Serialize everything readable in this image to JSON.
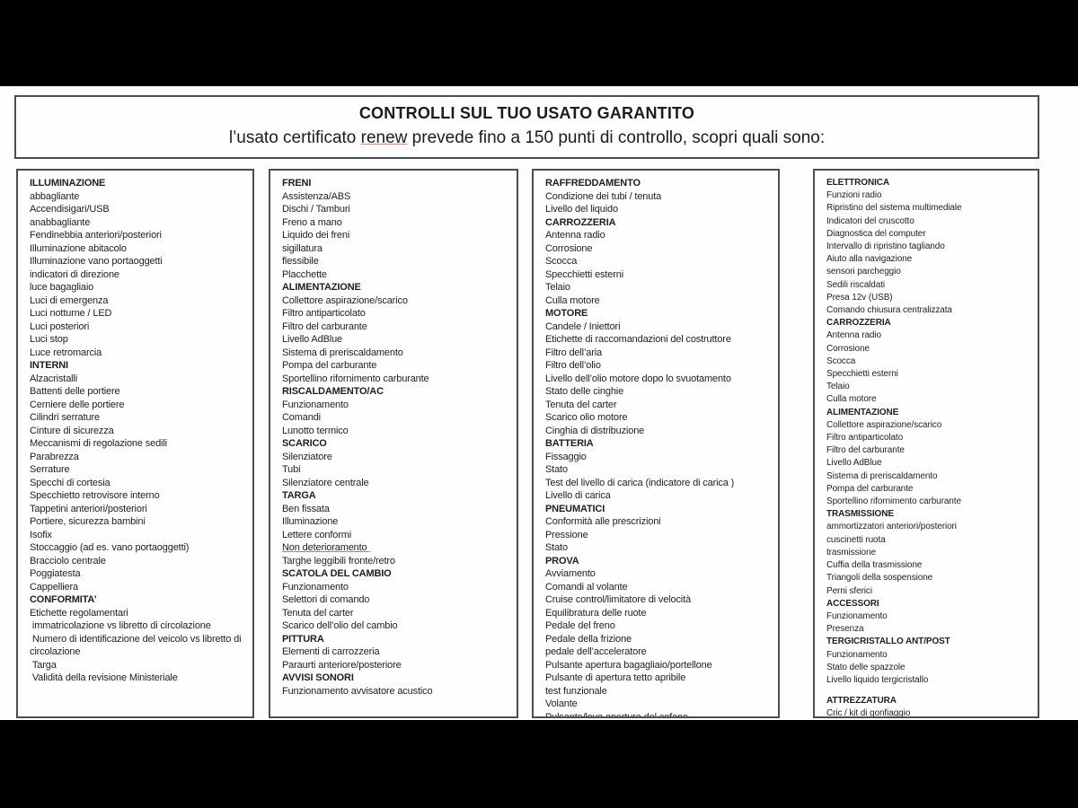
{
  "colors": {
    "frame": "#000000",
    "page_bg": "#fdfdfd",
    "box_border": "#4d4d4d",
    "text": "#1f1f1f",
    "spellcheck_underline": "#b97b74"
  },
  "header": {
    "title": "CONTROLLI SUL TUO USATO GARANTITO",
    "subtitle_pre": "l’usato certificato ",
    "subtitle_renew": "renew",
    "subtitle_post": " prevede fino a 150 punti di controllo, scopri quali sono:"
  },
  "columns": [
    {
      "items": [
        {
          "t": "ILLUMINAZIONE",
          "b": true
        },
        {
          "t": "abbagliante"
        },
        {
          "t": "Accendisigari/USB"
        },
        {
          "t": "anabbagliante"
        },
        {
          "t": "Fendinebbia anteriori/posteriori"
        },
        {
          "t": "Illuminazione abitacolo"
        },
        {
          "t": "Illuminazione vano portaoggetti"
        },
        {
          "t": "indicatori di direzione"
        },
        {
          "t": "luce bagagliaio"
        },
        {
          "t": "Luci di emergenza"
        },
        {
          "t": "Luci notturne / LED"
        },
        {
          "t": "Luci posteriori"
        },
        {
          "t": "Luci stop"
        },
        {
          "t": "Luce retromarcia"
        },
        {
          "t": "INTERNI",
          "b": true
        },
        {
          "t": "Alzacristalli"
        },
        {
          "t": "Battenti delle portiere"
        },
        {
          "t": "Cerniere delle portiere"
        },
        {
          "t": "Cilindri serrature"
        },
        {
          "t": "Cinture di sicurezza"
        },
        {
          "t": "Meccanismi di regolazione sedili"
        },
        {
          "t": "Parabrezza"
        },
        {
          "t": "Serrature"
        },
        {
          "t": "Specchi di cortesia"
        },
        {
          "t": "Specchietto retrovisore interno"
        },
        {
          "t": "Tappetini anteriori/posteriori"
        },
        {
          "t": "Portiere, sicurezza bambini"
        },
        {
          "t": "Isofix"
        },
        {
          "t": "Stoccaggio (ad es. vano portaoggetti)"
        },
        {
          "t": "Bracciolo centrale"
        },
        {
          "t": "Poggiatesta"
        },
        {
          "t": "Cappelliera"
        },
        {
          "t": "CONFORMITA’",
          "b": true
        },
        {
          "t": "Etichette regolamentari"
        },
        {
          "t": " immatricolazione vs libretto di circolazione"
        },
        {
          "t": " Numero di identificazione del veicolo vs libretto di circolazione"
        },
        {
          "t": " Targa"
        },
        {
          "t": " Validità della revisione Ministeriale"
        }
      ]
    },
    {
      "items": [
        {
          "t": "FRENI",
          "b": true
        },
        {
          "t": "Assistenza/ABS"
        },
        {
          "t": "Dischi / Tamburi"
        },
        {
          "t": "Freno a mano"
        },
        {
          "t": "Liquido dei freni"
        },
        {
          "t": "sigillatura"
        },
        {
          "t": "flessibile"
        },
        {
          "t": "Placchette"
        },
        {
          "t": "ALIMENTAZIONE",
          "b": true
        },
        {
          "t": "Collettore aspirazione/scarico"
        },
        {
          "t": "Filtro antiparticolato"
        },
        {
          "t": "Filtro del carburante"
        },
        {
          "t": "Livello AdBlue"
        },
        {
          "t": "Sistema di preriscaldamento"
        },
        {
          "t": "Pompa del carburante"
        },
        {
          "t": "Sportellino rifornimento carburante"
        },
        {
          "t": "RISCALDAMENTO/AC",
          "b": true
        },
        {
          "t": "Funzionamento"
        },
        {
          "t": "Comandi"
        },
        {
          "t": "Lunotto termico"
        },
        {
          "t": "SCARICO",
          "b": true
        },
        {
          "t": "Silenziatore"
        },
        {
          "t": "Tubi"
        },
        {
          "t": "Silenziatore centrale"
        },
        {
          "t": "TARGA",
          "b": true
        },
        {
          "t": "Ben fissata"
        },
        {
          "t": "Illuminazione"
        },
        {
          "t": "Lettere conformi"
        },
        {
          "t": "Non deterioramento ",
          "u": true
        },
        {
          "t": "Targhe leggibili fronte/retro"
        },
        {
          "t": "SCATOLA DEL CAMBIO",
          "b": true
        },
        {
          "t": "Funzionamento"
        },
        {
          "t": "Selettori di comando"
        },
        {
          "t": "Tenuta del carter"
        },
        {
          "t": "Scarico dell’olio del cambio"
        },
        {
          "t": "PITTURA",
          "b": true
        },
        {
          "t": "Elementi di carrozzeria"
        },
        {
          "t": "Paraurti anteriore/posteriore"
        },
        {
          "t": "AVVISI SONORI",
          "b": true
        },
        {
          "t": "Funzionamento avvisatore acustico"
        }
      ]
    },
    {
      "items": [
        {
          "t": "RAFFREDDAMENTO",
          "b": true
        },
        {
          "t": "Condizione dei tubi / tenuta"
        },
        {
          "t": "Livello del liquido"
        },
        {
          "t": "CARROZZERIA",
          "b": true
        },
        {
          "t": "Antenna radio"
        },
        {
          "t": "Corrosione"
        },
        {
          "t": "Scocca"
        },
        {
          "t": "Specchietti esterni"
        },
        {
          "t": "Telaio"
        },
        {
          "t": "Culla motore"
        },
        {
          "t": "MOTORE",
          "b": true
        },
        {
          "t": "Candele / Iniettori"
        },
        {
          "t": "Etichette di raccomandazioni del costruttore"
        },
        {
          "t": "Filtro dell’aria"
        },
        {
          "t": "Filtro dell’olio"
        },
        {
          "t": "Livello dell’olio motore dopo lo svuotamento"
        },
        {
          "t": "Stato delle cinghie"
        },
        {
          "t": "Tenuta del carter"
        },
        {
          "t": "Scarico olio motore"
        },
        {
          "t": "Cinghia di distribuzione"
        },
        {
          "t": "BATTERIA",
          "b": true
        },
        {
          "t": "Fissaggio"
        },
        {
          "t": "Stato"
        },
        {
          "t": "Test del livello di carica (indicatore di carica )"
        },
        {
          "t": "Livello di carica"
        },
        {
          "t": "PNEUMATICI",
          "b": true
        },
        {
          "t": "Conformità alle prescrizioni"
        },
        {
          "t": "Pressione"
        },
        {
          "t": "Stato"
        },
        {
          "t": "PROVA",
          "b": true
        },
        {
          "t": "Avviamento"
        },
        {
          "t": "Comandi al volante"
        },
        {
          "t": "Cruise control/limitatore di velocità"
        },
        {
          "t": "Equilibratura delle ruote"
        },
        {
          "t": "Pedale del freno"
        },
        {
          "t": "Pedale della frizione"
        },
        {
          "t": "pedale dell’acceleratore"
        },
        {
          "t": "Pulsante apertura bagagliaio/portellone"
        },
        {
          "t": "Pulsante di apertura tetto apribile"
        },
        {
          "t": "test funzionale"
        },
        {
          "t": "Volante"
        },
        {
          "t": "Pulsante/leva apertura del cofano"
        }
      ]
    },
    {
      "items": [
        {
          "t": "ELETTRONICA",
          "b": true
        },
        {
          "t": "Funzioni radio"
        },
        {
          "t": "Ripristino del sistema multimediale"
        },
        {
          "t": "Indicatori del cruscotto"
        },
        {
          "t": "Diagnostica del computer"
        },
        {
          "t": "Intervallo di ripristino tagliando"
        },
        {
          "t": "Aiuto alla navigazione"
        },
        {
          "t": "sensori parcheggio"
        },
        {
          "t": "Sedili riscaldati"
        },
        {
          "t": "Presa 12v (USB)"
        },
        {
          "t": "Comando chiusura centralizzata"
        },
        {
          "t": "CARROZZERIA",
          "b": true
        },
        {
          "t": "Antenna radio"
        },
        {
          "t": "Corrosione"
        },
        {
          "t": "Scocca"
        },
        {
          "t": "Specchietti esterni"
        },
        {
          "t": "Telaio"
        },
        {
          "t": "Culla motore"
        },
        {
          "t": "ALIMENTAZIONE",
          "b": true
        },
        {
          "t": "Collettore aspirazione/scarico"
        },
        {
          "t": "Filtro antiparticolato"
        },
        {
          "t": "Filtro del carburante"
        },
        {
          "t": "Livello AdBlue"
        },
        {
          "t": "Sistema di preriscaldamento"
        },
        {
          "t": "Pompa del carburante"
        },
        {
          "t": "Sportellino rifornimento carburante"
        },
        {
          "t": "TRASMISSIONE",
          "b": true
        },
        {
          "t": "ammortizzatori anteriori/posteriori"
        },
        {
          "t": "cuscinetti ruota"
        },
        {
          "t": "trasmissione"
        },
        {
          "t": "Cuffia della trasmissione"
        },
        {
          "t": "Triangoli della sospensione"
        },
        {
          "t": "Perni sferici"
        },
        {
          "t": "ACCESSORI",
          "b": true
        },
        {
          "t": "Funzionamento"
        },
        {
          "t": "Presenza"
        },
        {
          "t": "TERGICRISTALLO ANT/POST",
          "b": true
        },
        {
          "t": "Funzionamento"
        },
        {
          "t": "Stato delle spazzole"
        },
        {
          "t": "Livello liquido tergicristallo"
        },
        {
          "t": ""
        },
        {
          "t": "ATTREZZATURA",
          "b": true
        },
        {
          "t": "Cric / kit di gonfiaggio"
        }
      ]
    }
  ]
}
